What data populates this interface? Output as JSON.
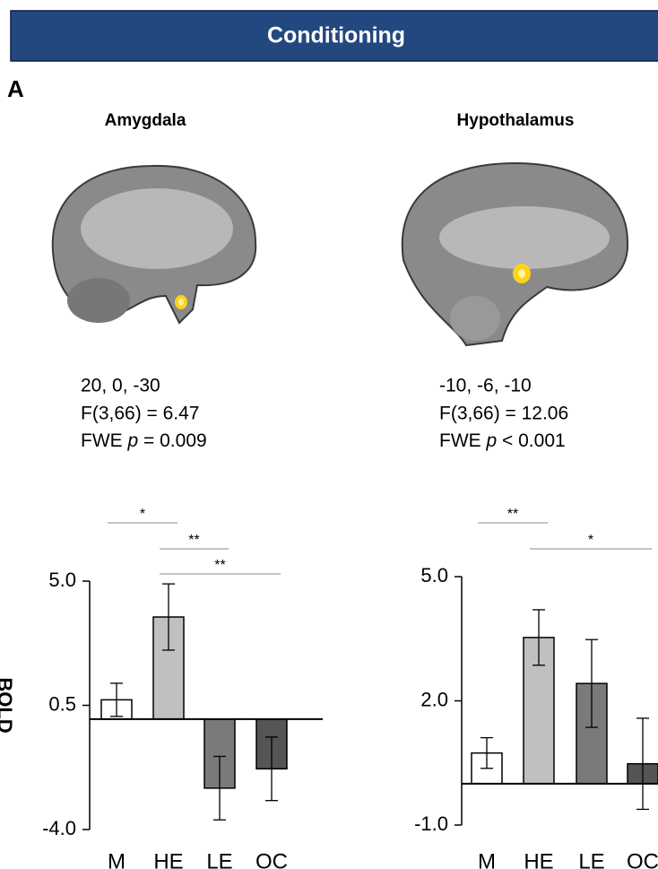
{
  "header": "Conditioning",
  "panel_label": "A",
  "chart_data": [
    {
      "type": "bar",
      "title": "Amygdala",
      "y_label": "BOLD",
      "coordinates": "20, 0, -30",
      "statistic": "F(3,66) = 6.47",
      "correction": {
        "method": "FWE",
        "symbol": "p",
        "result": "= 0.009"
      },
      "categories": [
        "M",
        "HE",
        "LE",
        "OC"
      ],
      "values": [
        0.7,
        3.7,
        -2.5,
        -1.8
      ],
      "errors": [
        0.6,
        1.2,
        1.15,
        1.15
      ],
      "colors": [
        "#ffffff",
        "#c0c0c0",
        "#7a7a7a",
        "#555555"
      ],
      "ylim": [
        -4.0,
        5.0
      ],
      "yticks": [
        {
          "value": 5,
          "label": "5.0"
        },
        0.5,
        {
          "value": -4,
          "label": "-4.0"
        }
      ],
      "significance": [
        {
          "from": "M",
          "to": "HE",
          "label": "*"
        },
        {
          "from": "HE",
          "to": "LE",
          "label": "**"
        },
        {
          "from": "HE",
          "to": "OC",
          "label": "**"
        }
      ]
    },
    {
      "type": "bar",
      "title": "Hypothalamus",
      "coordinates": "-10, -6, -10",
      "statistic": "F(3,66) = 12.06",
      "correction": {
        "method": "FWE",
        "symbol": "p",
        "result": "< 0.001"
      },
      "categories": [
        "M",
        "HE",
        "LE",
        "OC"
      ],
      "values": [
        0.74,
        3.53,
        2.42,
        0.48
      ],
      "errors": [
        0.37,
        0.67,
        1.06,
        1.1
      ],
      "colors": [
        "#ffffff",
        "#c0c0c0",
        "#7a7a7a",
        "#555555"
      ],
      "ylim": [
        -1.0,
        5.0
      ],
      "yticks": [
        {
          "value": 5,
          "label": "5.0"
        },
        {
          "value": 2,
          "label": "2.0"
        },
        {
          "value": -1,
          "label": "-1.0"
        }
      ],
      "significance": [
        {
          "from": "M",
          "to": "HE",
          "label": "**"
        },
        {
          "from": "HE",
          "to": "OC",
          "label": "*"
        }
      ]
    }
  ]
}
